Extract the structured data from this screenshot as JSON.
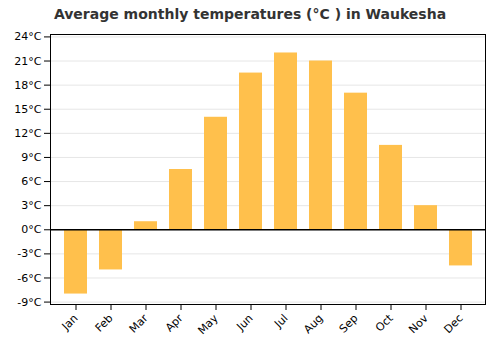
{
  "chart_data": {
    "type": "bar",
    "title": "Average monthly temperatures (°C ) in Waukesha",
    "categories": [
      "Jan",
      "Feb",
      "Mar",
      "Apr",
      "May",
      "Jun",
      "Jul",
      "Aug",
      "Sep",
      "Oct",
      "Nov",
      "Dec"
    ],
    "values": [
      -8.0,
      -5.0,
      1.0,
      7.5,
      14.0,
      19.5,
      22.0,
      21.0,
      17.0,
      10.5,
      3.0,
      -4.5
    ],
    "color": "#FFC04C",
    "ylim": [
      -9.3,
      24.3
    ],
    "yticks": [
      {
        "value": -9,
        "label": "-9°C"
      },
      {
        "value": -6,
        "label": "-6°C"
      },
      {
        "value": -3,
        "label": "-3°C"
      },
      {
        "value": 0,
        "label": "0°C"
      },
      {
        "value": 3,
        "label": "3°C"
      },
      {
        "value": 6,
        "label": "6°C"
      },
      {
        "value": 9,
        "label": "9°C"
      },
      {
        "value": 12,
        "label": "12°C"
      },
      {
        "value": 15,
        "label": "15°C"
      },
      {
        "value": 18,
        "label": "18°C"
      },
      {
        "value": 21,
        "label": "21°C"
      },
      {
        "value": 24,
        "label": "24°C"
      }
    ],
    "grid": true
  }
}
